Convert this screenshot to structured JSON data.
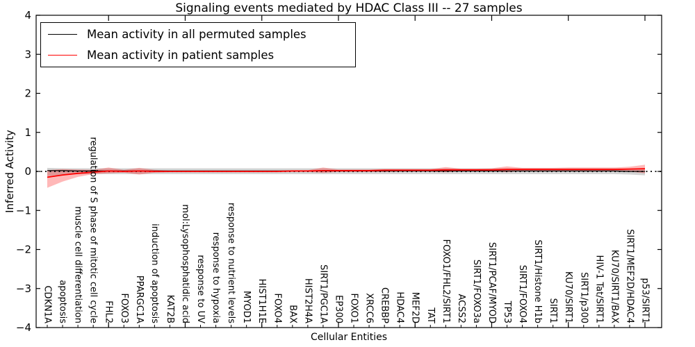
{
  "title": "Signaling events mediated by HDAC Class III -- 27 samples",
  "axes": {
    "ylabel": "Inferred Activity",
    "xlabel": "Cellular Entities"
  },
  "legend": {
    "items": [
      {
        "label": "Mean activity in all permuted samples",
        "color": "#000000"
      },
      {
        "label": "Mean activity in patient samples",
        "color": "#ff0000"
      }
    ]
  },
  "chart_data": {
    "type": "line",
    "title": "Signaling events mediated by HDAC Class III -- 27 samples",
    "xlabel": "Cellular Entities",
    "ylabel": "Inferred Activity",
    "ylim": [
      -4,
      4
    ],
    "yticks": [
      4,
      3,
      2,
      1,
      0,
      -1,
      -2,
      -3,
      -4
    ],
    "ytick_labels": [
      "4",
      "3",
      "2",
      "1",
      "0",
      "−1",
      "−2",
      "−3",
      "−4"
    ],
    "grid": false,
    "legend_position": "upper left",
    "zero_line": {
      "style": "dotted",
      "color": "#000000",
      "y": 0
    },
    "categories": [
      "CDKN1A",
      "apoptosis",
      "muscle cell differentiation",
      "regulation of S phase of mitotic cell cycle",
      "FHL2",
      "FOXO3",
      "PPARGC1A",
      "induction of apoptosis",
      "KAT2B",
      "mol:Lysophosphatidic acid",
      "response to UV",
      "response to hypoxia",
      "response to nutrient levels",
      "MYOD1",
      "HIST1H1E",
      "FOXO4",
      "BAX",
      "HIST2H4A",
      "SIRT1/PGC1A",
      "EP300",
      "FOXO1",
      "XRCC6",
      "CREBBP",
      "HDAC4",
      "MEF2D",
      "TAT",
      "FOXO1/FHL2/SIRT1",
      "ACSS2",
      "SIRT1/FOXO3a",
      "SIRT1/PCAF/MYOD",
      "TP53",
      "SIRT1/FOXO4",
      "SIRT1/Histone H1b",
      "SIRT1",
      "KU70/SIRT1",
      "SIRT1/p300",
      "HIV-1 Tat/SIRT1",
      "KU70/SIRT1/BAX",
      "SIRT1/MEF2D/HDAC4",
      "p53/SIRT1"
    ],
    "series": [
      {
        "name": "Mean activity in all permuted samples",
        "color": "#000000",
        "line_width": 1.3,
        "band_color": "rgba(128,128,128,0.35)",
        "values": [
          0.02,
          0.02,
          0.01,
          0.01,
          0.01,
          0.01,
          0.01,
          0.01,
          0.01,
          0.01,
          0.01,
          0.01,
          0.01,
          0.01,
          0.01,
          0.01,
          0.01,
          0.01,
          0.01,
          0.01,
          0.01,
          0.01,
          0.01,
          0.01,
          0.01,
          0.01,
          0.01,
          0.01,
          0.01,
          0.01,
          0.01,
          0.01,
          0.01,
          0.01,
          0.01,
          0.01,
          0.01,
          0.01,
          0.0,
          0.0
        ],
        "band_lo": [
          -0.12,
          -0.08,
          -0.07,
          -0.07,
          -0.07,
          -0.07,
          -0.07,
          -0.07,
          -0.07,
          -0.07,
          -0.07,
          -0.07,
          -0.07,
          -0.07,
          -0.07,
          -0.07,
          -0.07,
          -0.07,
          -0.07,
          -0.07,
          -0.07,
          -0.07,
          -0.07,
          -0.07,
          -0.07,
          -0.07,
          -0.07,
          -0.07,
          -0.07,
          -0.07,
          -0.07,
          -0.07,
          -0.07,
          -0.07,
          -0.07,
          -0.07,
          -0.07,
          -0.07,
          -0.08,
          -0.1
        ],
        "band_hi": [
          0.09,
          0.08,
          0.08,
          0.08,
          0.08,
          0.08,
          0.08,
          0.08,
          0.08,
          0.08,
          0.08,
          0.08,
          0.08,
          0.08,
          0.08,
          0.08,
          0.08,
          0.08,
          0.08,
          0.08,
          0.08,
          0.08,
          0.08,
          0.08,
          0.08,
          0.08,
          0.08,
          0.08,
          0.08,
          0.08,
          0.08,
          0.08,
          0.08,
          0.08,
          0.08,
          0.08,
          0.08,
          0.08,
          0.07,
          0.06
        ]
      },
      {
        "name": "Mean activity in patient samples",
        "color": "#ff0000",
        "line_width": 1.8,
        "band_color": "rgba(255,0,0,0.28)",
        "values": [
          -0.15,
          -0.09,
          -0.05,
          -0.02,
          0.01,
          0.0,
          0.01,
          0.0,
          0.0,
          0.0,
          0.0,
          0.0,
          0.0,
          0.0,
          0.0,
          0.0,
          0.01,
          0.01,
          0.02,
          0.02,
          0.02,
          0.02,
          0.03,
          0.03,
          0.03,
          0.03,
          0.04,
          0.04,
          0.04,
          0.04,
          0.05,
          0.05,
          0.05,
          0.05,
          0.05,
          0.05,
          0.05,
          0.05,
          0.06,
          0.07
        ],
        "band_lo": [
          -0.42,
          -0.26,
          -0.14,
          -0.07,
          -0.05,
          -0.03,
          -0.08,
          -0.03,
          -0.02,
          -0.02,
          -0.02,
          -0.02,
          -0.02,
          -0.02,
          -0.02,
          -0.02,
          -0.01,
          -0.01,
          -0.04,
          -0.01,
          -0.01,
          -0.01,
          -0.01,
          0.0,
          0.0,
          0.0,
          -0.02,
          0.01,
          0.01,
          0.01,
          -0.02,
          0.02,
          0.02,
          0.02,
          0.01,
          0.01,
          0.01,
          0.01,
          0.0,
          -0.05
        ],
        "band_hi": [
          0.03,
          0.06,
          0.05,
          0.04,
          0.1,
          0.04,
          0.09,
          0.04,
          0.02,
          0.02,
          0.02,
          0.02,
          0.02,
          0.02,
          0.02,
          0.02,
          0.03,
          0.03,
          0.1,
          0.05,
          0.05,
          0.05,
          0.06,
          0.06,
          0.06,
          0.06,
          0.11,
          0.07,
          0.07,
          0.08,
          0.13,
          0.09,
          0.09,
          0.09,
          0.1,
          0.1,
          0.1,
          0.1,
          0.12,
          0.17
        ]
      }
    ],
    "top_major_tick_every": 5
  }
}
